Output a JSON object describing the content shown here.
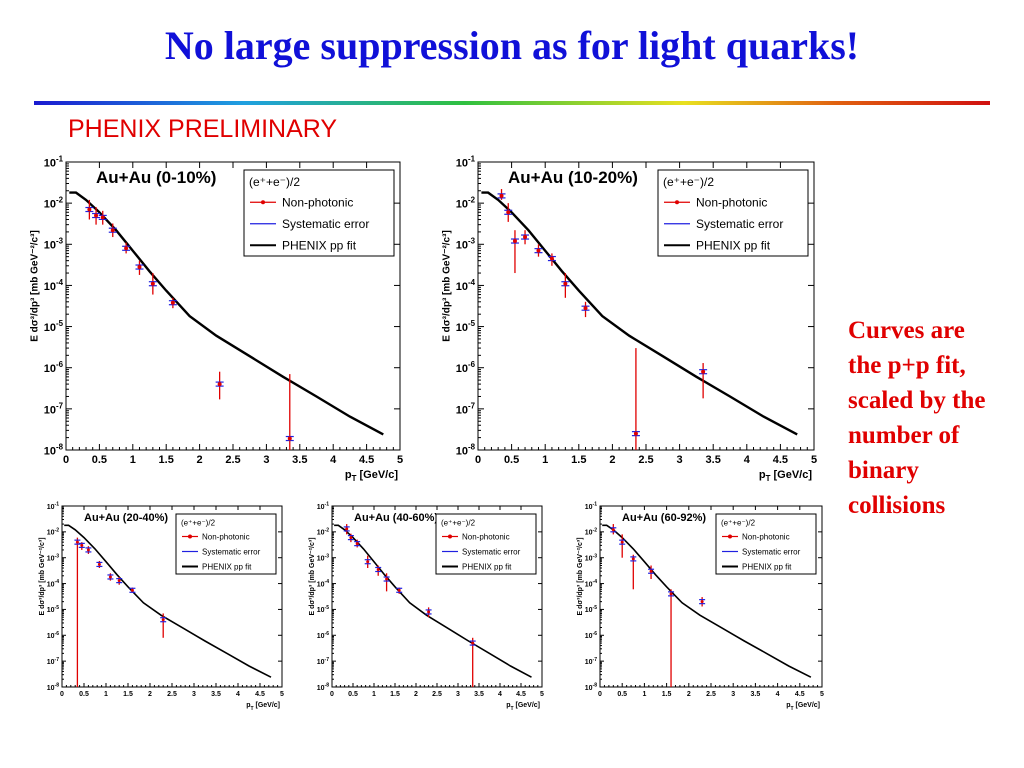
{
  "slide": {
    "title": "No large suppression as for light quarks!",
    "preliminary_label": "PHENIX PRELIMINARY",
    "note_lines": [
      "Curves are",
      "the p+p fit,",
      "scaled by the",
      "number of",
      "binary",
      "collisions"
    ],
    "colors": {
      "title": "#1010d8",
      "accent_red": "#e00000"
    }
  },
  "chart_data": [
    {
      "type": "scatter",
      "panel_label": "Au+Au (0-10%)",
      "title": "",
      "xlabel": "p_T [GeV/c]",
      "ylabel": "E dσ^3/dp^3 [mb GeV^-2/c^3]",
      "xlim": [
        0,
        5
      ],
      "ylim_log10": [
        -8,
        -1
      ],
      "yscale": "log",
      "x_ticks": [
        0,
        0.5,
        1,
        1.5,
        2,
        2.5,
        3,
        3.5,
        4,
        4.5,
        5
      ],
      "y_tick_exponents": [
        -8,
        -7,
        -6,
        -5,
        -4,
        -3,
        -2,
        -1
      ],
      "legend": {
        "title": "(e⁺+e⁻)/2",
        "entries": [
          "Non-photonic",
          "Systematic error",
          "PHENIX pp fit"
        ],
        "placement": "top-right"
      },
      "series": [
        {
          "name": "Non-photonic",
          "points": [
            {
              "x": 0.35,
              "y": 0.007,
              "lo": 0.004,
              "hi": 0.012
            },
            {
              "x": 0.45,
              "y": 0.005,
              "lo": 0.003,
              "hi": 0.008
            },
            {
              "x": 0.55,
              "y": 0.0045,
              "lo": 0.003,
              "hi": 0.0065
            },
            {
              "x": 0.7,
              "y": 0.0022,
              "lo": 0.0015,
              "hi": 0.0032
            },
            {
              "x": 0.9,
              "y": 0.0008,
              "lo": 0.0006,
              "hi": 0.0011
            },
            {
              "x": 1.1,
              "y": 0.00028,
              "lo": 0.00018,
              "hi": 0.0004
            },
            {
              "x": 1.3,
              "y": 0.00011,
              "lo": 6e-05,
              "hi": 0.0002
            },
            {
              "x": 1.6,
              "y": 3.8e-05,
              "lo": 2.8e-05,
              "hi": 5e-05
            },
            {
              "x": 2.3,
              "y": 4e-07,
              "lo": 1.7e-07,
              "hi": 8e-07
            },
            {
              "x": 3.35,
              "y": 1.9e-08,
              "lo": 1e-08,
              "hi": 7e-07
            }
          ]
        },
        {
          "name": "PHENIX pp fit",
          "curve": [
            [
              0.05,
              0.018
            ],
            [
              0.15,
              0.018
            ],
            [
              0.3,
              0.012
            ],
            [
              0.5,
              0.006
            ],
            [
              0.75,
              0.0022
            ],
            [
              1.0,
              0.0007
            ],
            [
              1.25,
              0.00022
            ],
            [
              1.5,
              7.5e-05
            ],
            [
              1.85,
              1.8e-05
            ],
            [
              2.25,
              6e-06
            ],
            [
              2.75,
              1.9e-06
            ],
            [
              3.25,
              6e-07
            ],
            [
              3.75,
              2e-07
            ],
            [
              4.25,
              6.5e-08
            ],
            [
              4.75,
              2.4e-08
            ]
          ]
        }
      ]
    },
    {
      "type": "scatter",
      "panel_label": "Au+Au (10-20%)",
      "title": "",
      "xlabel": "p_T [GeV/c]",
      "ylabel": "E dσ^3/dp^3 [mb GeV^-2/c^3]",
      "xlim": [
        0,
        5
      ],
      "ylim_log10": [
        -8,
        -1
      ],
      "yscale": "log",
      "x_ticks": [
        0,
        0.5,
        1,
        1.5,
        2,
        2.5,
        3,
        3.5,
        4,
        4.5,
        5
      ],
      "y_tick_exponents": [
        -8,
        -7,
        -6,
        -5,
        -4,
        -3,
        -2,
        -1
      ],
      "legend": {
        "title": "(e⁺+e⁻)/2",
        "entries": [
          "Non-photonic",
          "Systematic error",
          "PHENIX pp fit"
        ],
        "placement": "top-right"
      },
      "series": [
        {
          "name": "Non-photonic",
          "points": [
            {
              "x": 0.35,
              "y": 0.015,
              "lo": 0.012,
              "hi": 0.022
            },
            {
              "x": 0.45,
              "y": 0.006,
              "lo": 0.0035,
              "hi": 0.01
            },
            {
              "x": 0.55,
              "y": 0.0012,
              "lo": 0.0002,
              "hi": 0.0022
            },
            {
              "x": 0.7,
              "y": 0.0015,
              "lo": 0.001,
              "hi": 0.0022
            },
            {
              "x": 0.9,
              "y": 0.0007,
              "lo": 0.0005,
              "hi": 0.001
            },
            {
              "x": 1.1,
              "y": 0.00045,
              "lo": 0.0003,
              "hi": 0.0006
            },
            {
              "x": 1.3,
              "y": 0.00011,
              "lo": 5e-05,
              "hi": 0.0002
            },
            {
              "x": 1.6,
              "y": 2.8e-05,
              "lo": 1.7e-05,
              "hi": 4e-05
            },
            {
              "x": 2.35,
              "y": 2.5e-08,
              "lo": 1e-08,
              "hi": 3e-06
            },
            {
              "x": 3.35,
              "y": 8e-07,
              "lo": 1.8e-07,
              "hi": 1.3e-06
            }
          ]
        },
        {
          "name": "PHENIX pp fit",
          "curve": [
            [
              0.05,
              0.018
            ],
            [
              0.15,
              0.018
            ],
            [
              0.3,
              0.012
            ],
            [
              0.5,
              0.006
            ],
            [
              0.75,
              0.0022
            ],
            [
              1.0,
              0.0007
            ],
            [
              1.25,
              0.00022
            ],
            [
              1.5,
              7.5e-05
            ],
            [
              1.85,
              1.8e-05
            ],
            [
              2.25,
              6e-06
            ],
            [
              2.75,
              1.9e-06
            ],
            [
              3.25,
              6e-07
            ],
            [
              3.75,
              2e-07
            ],
            [
              4.25,
              6.5e-08
            ],
            [
              4.75,
              2.4e-08
            ]
          ]
        }
      ]
    },
    {
      "type": "scatter",
      "panel_label": "Au+Au (20-40%)",
      "title": "",
      "xlabel": "p_T [GeV/c]",
      "ylabel": "E dσ^3/dp^3 [mb GeV^-2/c^3]",
      "xlim": [
        0,
        5
      ],
      "ylim_log10": [
        -8,
        -1
      ],
      "yscale": "log",
      "x_ticks": [
        0,
        0.5,
        1,
        1.5,
        2,
        2.5,
        3,
        3.5,
        4,
        4.5,
        5
      ],
      "y_tick_exponents": [
        -8,
        -7,
        -6,
        -5,
        -4,
        -3,
        -2,
        -1
      ],
      "legend": {
        "title": "(e⁺+e⁻)/2",
        "entries": [
          "Non-photonic",
          "Systematic error",
          "PHENIX pp fit"
        ],
        "placement": "top-right"
      },
      "series": [
        {
          "name": "Non-photonic",
          "points": [
            {
              "x": 0.35,
              "y": 0.004,
              "lo": 1e-08,
              "hi": 0.006
            },
            {
              "x": 0.45,
              "y": 0.003,
              "lo": 0.002,
              "hi": 0.004
            },
            {
              "x": 0.6,
              "y": 0.002,
              "lo": 0.0014,
              "hi": 0.0028
            },
            {
              "x": 0.85,
              "y": 0.00055,
              "lo": 0.0004,
              "hi": 0.00075
            },
            {
              "x": 1.1,
              "y": 0.00018,
              "lo": 0.00013,
              "hi": 0.00025
            },
            {
              "x": 1.3,
              "y": 0.00013,
              "lo": 9e-05,
              "hi": 0.00018
            },
            {
              "x": 1.6,
              "y": 5.5e-05,
              "lo": 4.5e-05,
              "hi": 7e-05
            },
            {
              "x": 2.3,
              "y": 4e-06,
              "lo": 8e-07,
              "hi": 7e-06
            }
          ]
        },
        {
          "name": "PHENIX pp fit",
          "curve": [
            [
              0.05,
              0.018
            ],
            [
              0.15,
              0.018
            ],
            [
              0.3,
              0.012
            ],
            [
              0.5,
              0.006
            ],
            [
              0.75,
              0.0022
            ],
            [
              1.0,
              0.0007
            ],
            [
              1.25,
              0.00022
            ],
            [
              1.5,
              7.5e-05
            ],
            [
              1.85,
              1.8e-05
            ],
            [
              2.25,
              6e-06
            ],
            [
              2.75,
              1.9e-06
            ],
            [
              3.25,
              6e-07
            ],
            [
              3.75,
              2e-07
            ],
            [
              4.25,
              6.5e-08
            ],
            [
              4.75,
              2.4e-08
            ]
          ]
        }
      ]
    },
    {
      "type": "scatter",
      "panel_label": "Au+Au (40-60%)",
      "title": "",
      "xlabel": "p_T [GeV/c]",
      "ylabel": "E dσ^3/dp^3 [mb GeV^-2/c^3]",
      "xlim": [
        0,
        5
      ],
      "ylim_log10": [
        -8,
        -1
      ],
      "yscale": "log",
      "x_ticks": [
        0,
        0.5,
        1,
        1.5,
        2,
        2.5,
        3,
        3.5,
        4,
        4.5,
        5
      ],
      "y_tick_exponents": [
        -8,
        -7,
        -6,
        -5,
        -4,
        -3,
        -2,
        -1
      ],
      "legend": {
        "title": "(e⁺+e⁻)/2",
        "entries": [
          "Non-photonic",
          "Systematic error",
          "PHENIX pp fit"
        ],
        "placement": "top-right"
      },
      "series": [
        {
          "name": "Non-photonic",
          "points": [
            {
              "x": 0.35,
              "y": 0.013,
              "lo": 0.008,
              "hi": 0.02
            },
            {
              "x": 0.45,
              "y": 0.006,
              "lo": 0.004,
              "hi": 0.0085
            },
            {
              "x": 0.6,
              "y": 0.0035,
              "lo": 0.0025,
              "hi": 0.005
            },
            {
              "x": 0.85,
              "y": 0.0007,
              "lo": 0.0004,
              "hi": 0.0012
            },
            {
              "x": 1.1,
              "y": 0.00035,
              "lo": 0.0002,
              "hi": 0.0005
            },
            {
              "x": 1.3,
              "y": 0.00015,
              "lo": 5e-05,
              "hi": 0.00025
            },
            {
              "x": 1.6,
              "y": 5.5e-05,
              "lo": 4e-05,
              "hi": 7e-05
            },
            {
              "x": 2.3,
              "y": 8e-06,
              "lo": 5e-06,
              "hi": 1.2e-05
            },
            {
              "x": 3.35,
              "y": 5e-07,
              "lo": 1e-08,
              "hi": 8e-07
            }
          ]
        },
        {
          "name": "PHENIX pp fit",
          "curve": [
            [
              0.05,
              0.018
            ],
            [
              0.15,
              0.018
            ],
            [
              0.3,
              0.012
            ],
            [
              0.5,
              0.006
            ],
            [
              0.75,
              0.0022
            ],
            [
              1.0,
              0.0007
            ],
            [
              1.25,
              0.00022
            ],
            [
              1.5,
              7.5e-05
            ],
            [
              1.85,
              1.8e-05
            ],
            [
              2.25,
              6e-06
            ],
            [
              2.75,
              1.9e-06
            ],
            [
              3.25,
              6e-07
            ],
            [
              3.75,
              2e-07
            ],
            [
              4.25,
              6.5e-08
            ],
            [
              4.75,
              2.4e-08
            ]
          ]
        }
      ]
    },
    {
      "type": "scatter",
      "panel_label": "Au+Au (60-92%)",
      "title": "",
      "xlabel": "p_T [GeV/c]",
      "ylabel": "E dσ^3/dp^3 [mb GeV^-2/c^3]",
      "xlim": [
        0,
        5
      ],
      "ylim_log10": [
        -8,
        -1
      ],
      "yscale": "log",
      "x_ticks": [
        0,
        0.5,
        1,
        1.5,
        2,
        2.5,
        3,
        3.5,
        4,
        4.5,
        5
      ],
      "y_tick_exponents": [
        -8,
        -7,
        -6,
        -5,
        -4,
        -3,
        -2,
        -1
      ],
      "legend": {
        "title": "(e⁺+e⁻)/2",
        "entries": [
          "Non-photonic",
          "Systematic error",
          "PHENIX pp fit"
        ],
        "placement": "top-right"
      },
      "series": [
        {
          "name": "Non-photonic",
          "points": [
            {
              "x": 0.3,
              "y": 0.012,
              "lo": 0.008,
              "hi": 0.02
            },
            {
              "x": 0.5,
              "y": 0.004,
              "lo": 0.001,
              "hi": 0.008
            },
            {
              "x": 0.75,
              "y": 0.0009,
              "lo": 6e-05,
              "hi": 0.0013
            },
            {
              "x": 1.15,
              "y": 0.0003,
              "lo": 0.00015,
              "hi": 0.0005
            },
            {
              "x": 1.6,
              "y": 4e-05,
              "lo": 1e-08,
              "hi": 6e-05
            },
            {
              "x": 2.3,
              "y": 2e-05,
              "lo": 1.3e-05,
              "hi": 3e-05
            }
          ]
        },
        {
          "name": "PHENIX pp fit",
          "curve": [
            [
              0.05,
              0.018
            ],
            [
              0.15,
              0.018
            ],
            [
              0.3,
              0.012
            ],
            [
              0.5,
              0.006
            ],
            [
              0.75,
              0.0022
            ],
            [
              1.0,
              0.0007
            ],
            [
              1.25,
              0.00022
            ],
            [
              1.5,
              7.5e-05
            ],
            [
              1.85,
              1.8e-05
            ],
            [
              2.25,
              6e-06
            ],
            [
              2.75,
              1.9e-06
            ],
            [
              3.25,
              6e-07
            ],
            [
              3.75,
              2e-07
            ],
            [
              4.25,
              6.5e-08
            ],
            [
              4.75,
              2.4e-08
            ]
          ]
        }
      ]
    }
  ]
}
